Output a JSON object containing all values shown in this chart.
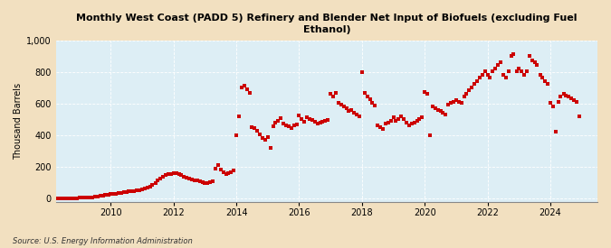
{
  "title": "Monthly West Coast (PADD 5) Refinery and Blender Net Input of Biofuels (excluding Fuel\nEthanol)",
  "ylabel": "Thousand Barrels",
  "source": "Source: U.S. Energy Information Administration",
  "bg_color": "#f2e0c0",
  "plot_bg_color": "#ddeef5",
  "marker_color": "#cc0000",
  "marker_size": 9,
  "xlim_start": 2008.25,
  "xlim_end": 2025.5,
  "ylim": [
    -20,
    1000
  ],
  "yticks": [
    0,
    200,
    400,
    600,
    800,
    1000
  ],
  "xticks": [
    2010,
    2012,
    2014,
    2016,
    2018,
    2020,
    2022,
    2024
  ],
  "data": [
    [
      2008.33,
      2
    ],
    [
      2008.42,
      2
    ],
    [
      2008.5,
      3
    ],
    [
      2008.58,
      3
    ],
    [
      2008.67,
      3
    ],
    [
      2008.75,
      3
    ],
    [
      2008.83,
      4
    ],
    [
      2008.92,
      4
    ],
    [
      2009.0,
      5
    ],
    [
      2009.08,
      5
    ],
    [
      2009.17,
      6
    ],
    [
      2009.25,
      7
    ],
    [
      2009.33,
      8
    ],
    [
      2009.42,
      10
    ],
    [
      2009.5,
      12
    ],
    [
      2009.58,
      15
    ],
    [
      2009.67,
      18
    ],
    [
      2009.75,
      20
    ],
    [
      2009.83,
      22
    ],
    [
      2009.92,
      25
    ],
    [
      2010.0,
      28
    ],
    [
      2010.08,
      30
    ],
    [
      2010.17,
      32
    ],
    [
      2010.25,
      35
    ],
    [
      2010.33,
      38
    ],
    [
      2010.42,
      40
    ],
    [
      2010.5,
      42
    ],
    [
      2010.58,
      45
    ],
    [
      2010.67,
      48
    ],
    [
      2010.75,
      50
    ],
    [
      2010.83,
      52
    ],
    [
      2010.92,
      55
    ],
    [
      2011.0,
      58
    ],
    [
      2011.08,
      62
    ],
    [
      2011.17,
      68
    ],
    [
      2011.25,
      75
    ],
    [
      2011.33,
      85
    ],
    [
      2011.42,
      100
    ],
    [
      2011.5,
      115
    ],
    [
      2011.58,
      128
    ],
    [
      2011.67,
      138
    ],
    [
      2011.75,
      148
    ],
    [
      2011.83,
      155
    ],
    [
      2011.92,
      158
    ],
    [
      2012.0,
      162
    ],
    [
      2012.08,
      160
    ],
    [
      2012.17,
      155
    ],
    [
      2012.25,
      148
    ],
    [
      2012.33,
      140
    ],
    [
      2012.42,
      132
    ],
    [
      2012.5,
      125
    ],
    [
      2012.58,
      120
    ],
    [
      2012.67,
      115
    ],
    [
      2012.75,
      118
    ],
    [
      2012.83,
      110
    ],
    [
      2012.92,
      105
    ],
    [
      2013.0,
      100
    ],
    [
      2013.08,
      98
    ],
    [
      2013.17,
      102
    ],
    [
      2013.25,
      108
    ],
    [
      2013.33,
      190
    ],
    [
      2013.42,
      210
    ],
    [
      2013.5,
      185
    ],
    [
      2013.58,
      165
    ],
    [
      2013.67,
      158
    ],
    [
      2013.75,
      162
    ],
    [
      2013.83,
      168
    ],
    [
      2013.92,
      178
    ],
    [
      2014.0,
      400
    ],
    [
      2014.08,
      520
    ],
    [
      2014.17,
      700
    ],
    [
      2014.25,
      715
    ],
    [
      2014.33,
      690
    ],
    [
      2014.42,
      670
    ],
    [
      2014.5,
      450
    ],
    [
      2014.58,
      445
    ],
    [
      2014.67,
      430
    ],
    [
      2014.75,
      405
    ],
    [
      2014.83,
      385
    ],
    [
      2014.92,
      370
    ],
    [
      2015.0,
      390
    ],
    [
      2015.08,
      318
    ],
    [
      2015.17,
      455
    ],
    [
      2015.25,
      480
    ],
    [
      2015.33,
      490
    ],
    [
      2015.42,
      510
    ],
    [
      2015.5,
      475
    ],
    [
      2015.58,
      465
    ],
    [
      2015.67,
      458
    ],
    [
      2015.75,
      448
    ],
    [
      2015.83,
      460
    ],
    [
      2015.92,
      468
    ],
    [
      2016.0,
      525
    ],
    [
      2016.08,
      505
    ],
    [
      2016.17,
      485
    ],
    [
      2016.25,
      515
    ],
    [
      2016.33,
      505
    ],
    [
      2016.42,
      495
    ],
    [
      2016.5,
      485
    ],
    [
      2016.58,
      472
    ],
    [
      2016.67,
      482
    ],
    [
      2016.75,
      488
    ],
    [
      2016.83,
      493
    ],
    [
      2016.92,
      498
    ],
    [
      2017.0,
      662
    ],
    [
      2017.08,
      645
    ],
    [
      2017.17,
      665
    ],
    [
      2017.25,
      605
    ],
    [
      2017.33,
      592
    ],
    [
      2017.42,
      582
    ],
    [
      2017.5,
      572
    ],
    [
      2017.58,
      555
    ],
    [
      2017.67,
      562
    ],
    [
      2017.75,
      542
    ],
    [
      2017.83,
      532
    ],
    [
      2017.92,
      522
    ],
    [
      2018.0,
      800
    ],
    [
      2018.08,
      665
    ],
    [
      2018.17,
      645
    ],
    [
      2018.25,
      625
    ],
    [
      2018.33,
      605
    ],
    [
      2018.42,
      585
    ],
    [
      2018.5,
      462
    ],
    [
      2018.58,
      452
    ],
    [
      2018.67,
      442
    ],
    [
      2018.75,
      472
    ],
    [
      2018.83,
      482
    ],
    [
      2018.92,
      492
    ],
    [
      2019.0,
      512
    ],
    [
      2019.08,
      492
    ],
    [
      2019.17,
      502
    ],
    [
      2019.25,
      522
    ],
    [
      2019.33,
      502
    ],
    [
      2019.42,
      482
    ],
    [
      2019.5,
      462
    ],
    [
      2019.58,
      472
    ],
    [
      2019.67,
      482
    ],
    [
      2019.75,
      492
    ],
    [
      2019.83,
      502
    ],
    [
      2019.92,
      512
    ],
    [
      2020.0,
      672
    ],
    [
      2020.08,
      662
    ],
    [
      2020.17,
      402
    ],
    [
      2020.25,
      582
    ],
    [
      2020.33,
      572
    ],
    [
      2020.42,
      562
    ],
    [
      2020.5,
      552
    ],
    [
      2020.58,
      542
    ],
    [
      2020.67,
      532
    ],
    [
      2020.75,
      592
    ],
    [
      2020.83,
      602
    ],
    [
      2020.92,
      612
    ],
    [
      2021.0,
      622
    ],
    [
      2021.08,
      612
    ],
    [
      2021.17,
      602
    ],
    [
      2021.25,
      642
    ],
    [
      2021.33,
      662
    ],
    [
      2021.42,
      682
    ],
    [
      2021.5,
      702
    ],
    [
      2021.58,
      722
    ],
    [
      2021.67,
      742
    ],
    [
      2021.75,
      762
    ],
    [
      2021.83,
      782
    ],
    [
      2021.92,
      802
    ],
    [
      2022.0,
      782
    ],
    [
      2022.08,
      762
    ],
    [
      2022.17,
      802
    ],
    [
      2022.25,
      822
    ],
    [
      2022.33,
      842
    ],
    [
      2022.42,
      862
    ],
    [
      2022.5,
      782
    ],
    [
      2022.58,
      762
    ],
    [
      2022.67,
      802
    ],
    [
      2022.75,
      902
    ],
    [
      2022.83,
      912
    ],
    [
      2022.92,
      802
    ],
    [
      2023.0,
      822
    ],
    [
      2023.08,
      802
    ],
    [
      2023.17,
      782
    ],
    [
      2023.25,
      802
    ],
    [
      2023.33,
      902
    ],
    [
      2023.42,
      872
    ],
    [
      2023.5,
      862
    ],
    [
      2023.58,
      842
    ],
    [
      2023.67,
      782
    ],
    [
      2023.75,
      762
    ],
    [
      2023.83,
      742
    ],
    [
      2023.92,
      722
    ],
    [
      2024.0,
      602
    ],
    [
      2024.08,
      582
    ],
    [
      2024.17,
      422
    ],
    [
      2024.25,
      612
    ],
    [
      2024.33,
      642
    ],
    [
      2024.42,
      662
    ],
    [
      2024.5,
      652
    ],
    [
      2024.58,
      642
    ],
    [
      2024.67,
      632
    ],
    [
      2024.75,
      622
    ],
    [
      2024.83,
      612
    ],
    [
      2024.92,
      522
    ]
  ]
}
